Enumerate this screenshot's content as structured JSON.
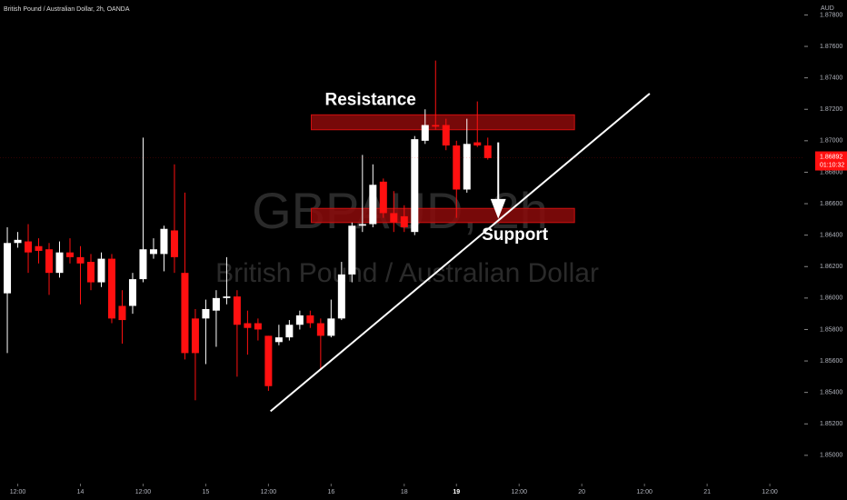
{
  "chart_data": {
    "type": "candlestick",
    "title": "British Pound / Australian Dollar, 2h, OANDA",
    "currency": "AUD",
    "watermark": {
      "symbol": "GBPAUD, 2h",
      "description": "British Pound / Australian Dollar"
    },
    "up_color": "#ffffff",
    "down_color": "#ff1010",
    "open": [
      1.8603,
      1.8635,
      1.8636,
      1.8633,
      1.8631,
      1.8616,
      1.8629,
      1.8626,
      1.8623,
      1.861,
      1.8625,
      1.8595,
      1.8595,
      1.8612,
      1.8628,
      1.8628,
      1.8643,
      1.8616,
      1.8587,
      1.8587,
      1.8592,
      1.86,
      1.8601,
      1.8584,
      1.8584,
      1.8576,
      1.8572,
      1.8575,
      1.8583,
      1.8589,
      1.8584,
      1.8576,
      1.8587,
      1.8615,
      1.8646,
      1.8647,
      1.8674,
      1.8654,
      1.8652,
      1.8642,
      1.87,
      1.871,
      1.871,
      1.8697,
      1.8669,
      1.8699,
      1.8697
    ],
    "high": [
      1.8645,
      1.8642,
      1.8647,
      1.8638,
      1.8635,
      1.8636,
      1.8638,
      1.8633,
      1.8628,
      1.8629,
      1.8628,
      1.8605,
      1.8616,
      1.8702,
      1.8638,
      1.8646,
      1.8685,
      1.8667,
      1.8593,
      1.8599,
      1.8605,
      1.8626,
      1.8605,
      1.8592,
      1.8587,
      1.8576,
      1.8583,
      1.8586,
      1.8592,
      1.8592,
      1.8587,
      1.8599,
      1.8623,
      1.8648,
      1.8691,
      1.8685,
      1.8676,
      1.8668,
      1.8659,
      1.8703,
      1.872,
      1.8751,
      1.8714,
      1.87,
      1.8714,
      1.8725,
      1.8702
    ],
    "low": [
      1.8565,
      1.8632,
      1.8616,
      1.8622,
      1.8602,
      1.8613,
      1.8622,
      1.8596,
      1.8605,
      1.8607,
      1.8584,
      1.8571,
      1.859,
      1.861,
      1.8625,
      1.8617,
      1.8616,
      1.8561,
      1.8535,
      1.8558,
      1.8569,
      1.8596,
      1.855,
      1.8564,
      1.8573,
      1.8541,
      1.857,
      1.8573,
      1.858,
      1.8581,
      1.8555,
      1.8575,
      1.8586,
      1.861,
      1.8642,
      1.8645,
      1.8651,
      1.8642,
      1.8642,
      1.864,
      1.8698,
      1.8707,
      1.8694,
      1.8651,
      1.8667,
      1.8696,
      1.8688
    ],
    "close": [
      1.8635,
      1.8637,
      1.8629,
      1.863,
      1.8616,
      1.8629,
      1.8626,
      1.8622,
      1.861,
      1.8625,
      1.8587,
      1.8586,
      1.8612,
      1.8631,
      1.8631,
      1.8644,
      1.8626,
      1.8565,
      1.8565,
      1.8593,
      1.86,
      1.8601,
      1.8583,
      1.8581,
      1.858,
      1.8544,
      1.8575,
      1.8583,
      1.8589,
      1.8584,
      1.8576,
      1.8587,
      1.8615,
      1.8646,
      1.8647,
      1.8672,
      1.8654,
      1.8648,
      1.8645,
      1.8701,
      1.871,
      1.8709,
      1.8697,
      1.8669,
      1.8698,
      1.8697,
      1.8689
    ],
    "last_price": 1.86892,
    "countdown": "01:10:32",
    "zones": [
      {
        "name": "Resistance",
        "x": [
          29.1,
          54.3
        ],
        "range": [
          1.8707,
          1.87165
        ]
      },
      {
        "name": "Support",
        "x": [
          29.1,
          54.3
        ],
        "range": [
          1.8648,
          1.8657
        ]
      }
    ],
    "trendline": {
      "x": [
        25.2,
        61.5
      ],
      "y": [
        1.8528,
        1.873
      ]
    },
    "arrow": {
      "x": 47.0,
      "y": [
        1.8699,
        1.8652
      ]
    },
    "xlim": [
      -0.7,
      76.3
    ],
    "xticks": [
      {
        "value": 1,
        "label": "12:00"
      },
      {
        "value": 7,
        "label": "14"
      },
      {
        "value": 13,
        "label": "12:00"
      },
      {
        "value": 19,
        "label": "15"
      },
      {
        "value": 25,
        "label": "12:00"
      },
      {
        "value": 31,
        "label": "16"
      },
      {
        "value": 38,
        "label": "18"
      },
      {
        "value": 43,
        "label": "19"
      },
      {
        "value": 49,
        "label": "12:00"
      },
      {
        "value": 55,
        "label": "20"
      },
      {
        "value": 61,
        "label": "12:00"
      },
      {
        "value": 67,
        "label": "21"
      },
      {
        "value": 73,
        "label": "12:00"
      }
    ],
    "ylim": [
      1.8482,
      1.87895
    ],
    "yticks": [
      {
        "value": 1.878,
        "label": "1.87800"
      },
      {
        "value": 1.876,
        "label": "1.87600"
      },
      {
        "value": 1.874,
        "label": "1.87400"
      },
      {
        "value": 1.872,
        "label": "1.87200"
      },
      {
        "value": 1.87,
        "label": "1.87000"
      },
      {
        "value": 1.868,
        "label": "1.86800"
      },
      {
        "value": 1.866,
        "label": "1.86600"
      },
      {
        "value": 1.864,
        "label": "1.86400"
      },
      {
        "value": 1.862,
        "label": "1.86200"
      },
      {
        "value": 1.86,
        "label": "1.86000"
      },
      {
        "value": 1.858,
        "label": "1.85800"
      },
      {
        "value": 1.856,
        "label": "1.85600"
      },
      {
        "value": 1.854,
        "label": "1.85400"
      },
      {
        "value": 1.852,
        "label": "1.85200"
      },
      {
        "value": 1.85,
        "label": "1.85000"
      }
    ]
  }
}
